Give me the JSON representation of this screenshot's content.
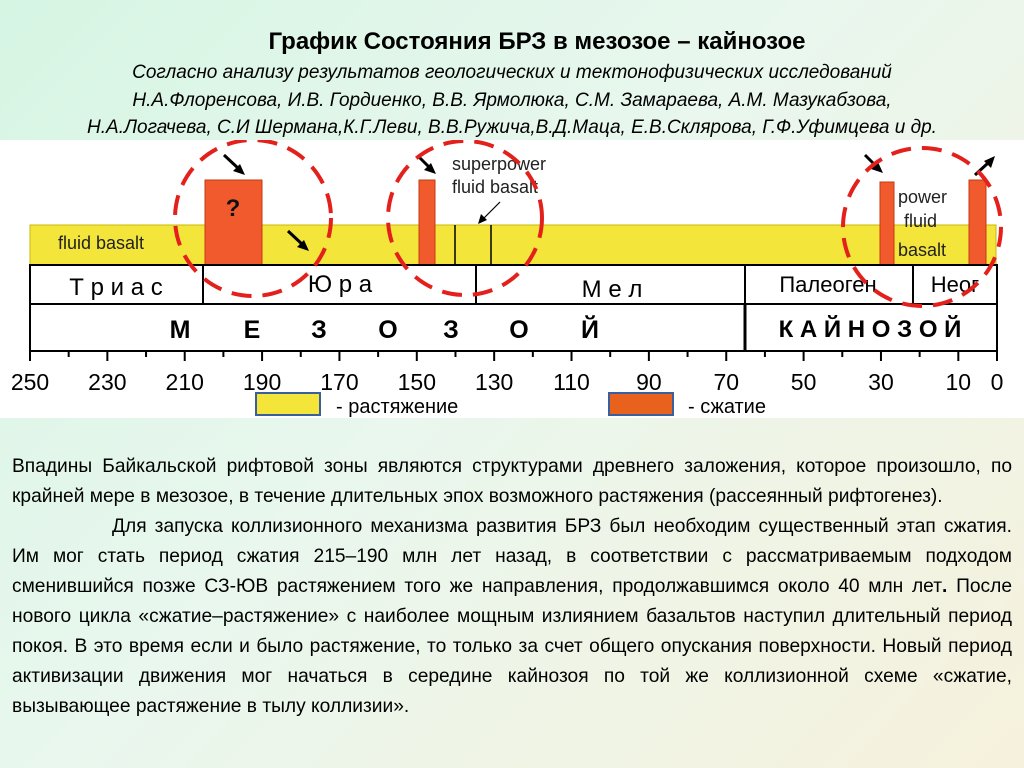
{
  "header": {
    "title": "График  Состояния БРЗ в мезозое – кайнозое",
    "subtitle_line1": "Согласно анализу  результатов геологических и тектонофизических  исследований",
    "subtitle_line2": "Н.А.Флоренсова, И.В. Гордиенко, В.В. Ярмолюка, С.М. Замараева, А.М. Мазукабзова,",
    "subtitle_line3": "Н.А.Логачева, С.И Шермана,К.Г.Леви, В.В.Ружича,В.Д.Маца, Е.В.Склярова, Г.Ф.Уфимцева и др."
  },
  "diagram": {
    "fluid_basalt_label": "fluid basalt",
    "question_mark": "?",
    "superpower_label_line1": "superpower",
    "superpower_label_line2": "fluid basalt",
    "power_label_line1": "power",
    "power_label_line2": "fluid",
    "power_label_line3": "basalt",
    "periods": {
      "trias": "Т р и а с",
      "jura": "Ю р а",
      "mel": "М е л",
      "paleogen": "Палеоген",
      "neogen": "Неог"
    },
    "eras": {
      "mesozoic": [
        "М",
        "Е",
        "З",
        "О",
        "З",
        "О",
        "Й"
      ],
      "cenozoic": "К А Й Н О З О Й"
    },
    "axis_ticks": [
      "250",
      "230",
      "210",
      "190",
      "170",
      "150",
      "130",
      "110",
      "90",
      "70",
      "50",
      "30",
      "10",
      "0"
    ],
    "extension_color": "#f3e53a",
    "compression_color": "#f05a2c"
  },
  "legend": {
    "extension_label": "- растяжение",
    "compression_label": "- сжатие"
  },
  "body_text": {
    "paragraph1": "Впадины Байкальской рифтовой зоны  являются структурами древнего заложения, которое произошло, по крайней мере в мезозое,  в течение длительных эпох возможного растяжения (рассеянный рифтогенез).",
    "paragraph2_before_bold": "Для запуска коллизионного механизма развития БРЗ был необходим существенный этап сжатия. Им мог стать период сжатия 215–190 млн лет назад, в соответствии с рассматриваемым подходом сменившийся позже СЗ-ЮВ растяжением того же направления, продолжавшимся около 40 млн лет",
    "paragraph2_bold": ".",
    "paragraph2_after_bold": " После нового цикла «сжатие–растяжение» с наиболее мощным излиянием базальтов наступил длительный период покоя. В это время если и было растяжение, то только за счет общего опускания поверхности. Новый период активизации движения мог начаться в середине кайнозоя по той же коллизионной схеме  «сжатие, вызывающее растяжение в тылу коллизии»."
  }
}
